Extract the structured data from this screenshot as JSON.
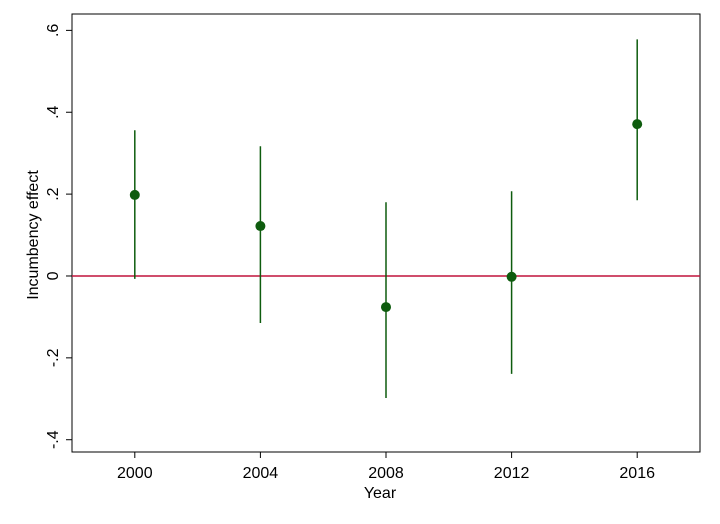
{
  "chart_data": {
    "type": "errorbar",
    "x_label": "Year",
    "y_label": "Incumbency effect",
    "x": [
      2000,
      2004,
      2008,
      2012,
      2016
    ],
    "series": [
      {
        "color": "#0e5c0e",
        "values": [
          0.198,
          0.122,
          -0.076,
          -0.002,
          0.371
        ],
        "low": [
          -0.007,
          -0.115,
          -0.298,
          -0.239,
          0.185
        ],
        "high": [
          0.356,
          0.317,
          0.18,
          0.207,
          0.578
        ]
      }
    ],
    "xlim": [
      1998,
      2018
    ],
    "xticks": [
      2000,
      2004,
      2008,
      2012,
      2016
    ],
    "ylim": [
      -0.43,
      0.64
    ],
    "yticks": [
      {
        "value": -0.4,
        "label": "-.4"
      },
      {
        "value": -0.2,
        "label": "-.2"
      },
      0,
      {
        "value": 0.2,
        "label": ".2"
      },
      {
        "value": 0.4,
        "label": ".4"
      },
      {
        "value": 0.6,
        "label": ".6"
      }
    ],
    "reference_line": {
      "value": 0,
      "color": "#c0143c"
    },
    "grid": false
  }
}
